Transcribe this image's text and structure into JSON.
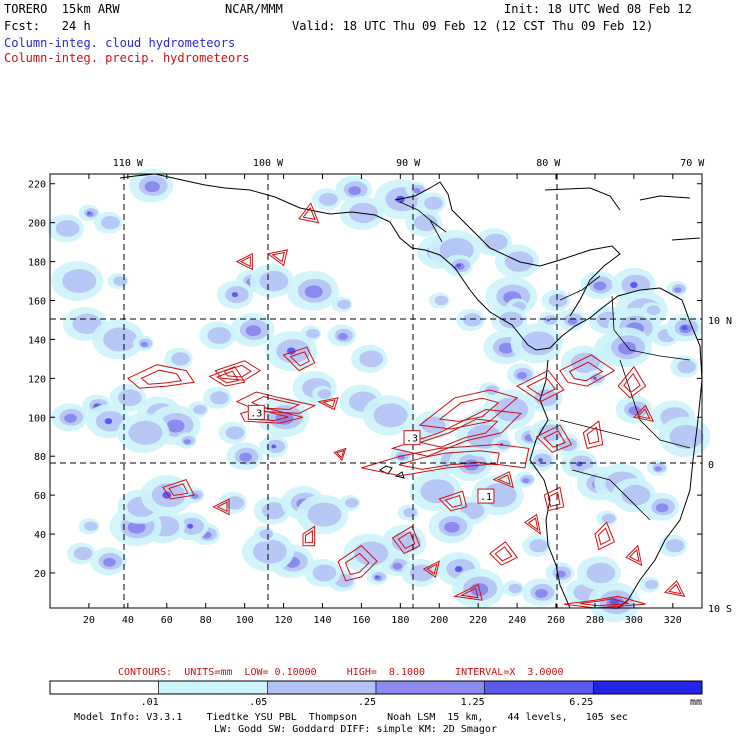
{
  "header": {
    "model": "TORERO  15km ARW",
    "org": "NCAR/MMM",
    "init": "Init: 18 UTC Wed 08 Feb 12",
    "fcst": "Fcst:   24 h",
    "valid": "Valid: 18 UTC Thu 09 Feb 12 (12 CST Thu 09 Feb 12)",
    "legend_cloud": "Column-integ. cloud hydrometeors",
    "legend_precip": "Column-integ. precip. hydrometeors"
  },
  "colors": {
    "cloud": "#2a2ad0",
    "precip": "#d01010",
    "shade": [
      "#ffffff",
      "#ccf4fb",
      "#b4c2f5",
      "#8a8af0",
      "#5a5aec",
      "#2424e6"
    ]
  },
  "chart_data": {
    "type": "heatmap",
    "title": "Column-integ. cloud / precip. hydrometeors",
    "x_ticks": [
      "20",
      "40",
      "60",
      "80",
      "100",
      "120",
      "140",
      "160",
      "180",
      "200",
      "220",
      "240",
      "260",
      "280",
      "300",
      "320"
    ],
    "y_ticks": [
      "20",
      "40",
      "60",
      "80",
      "100",
      "120",
      "140",
      "160",
      "180",
      "200",
      "220"
    ],
    "xlim": [
      0,
      335
    ],
    "ylim": [
      2,
      225
    ],
    "lon_labels": [
      {
        "label": "110 W",
        "x": 40
      },
      {
        "label": "100 W",
        "x": 112
      },
      {
        "label": "90 W",
        "x": 184
      },
      {
        "label": "80 W",
        "x": 256
      },
      {
        "label": "70 W",
        "x": 330
      }
    ],
    "lat_labels": [
      {
        "label": "10 N",
        "y": 150
      },
      {
        "label": "0",
        "y": 76
      },
      {
        "label": "10 S",
        "y": 2
      }
    ],
    "contour_labels": [
      {
        "label": ".3",
        "x": 106,
        "y": 102
      },
      {
        "label": ".3",
        "x": 186,
        "y": 89
      },
      {
        "label": ".1",
        "x": 224,
        "y": 59
      }
    ],
    "cloud_blobs": [
      [
        20,
        205
      ],
      [
        30,
        200
      ],
      [
        8,
        197
      ],
      [
        52,
        219
      ],
      [
        14,
        170
      ],
      [
        35,
        170
      ],
      [
        103,
        170
      ],
      [
        95,
        163
      ],
      [
        114,
        170
      ],
      [
        135,
        165
      ],
      [
        150,
        158
      ],
      [
        142,
        212
      ],
      [
        156,
        217
      ],
      [
        160,
        205
      ],
      [
        180,
        212
      ],
      [
        188,
        217
      ],
      [
        196,
        210
      ],
      [
        192,
        200
      ],
      [
        200,
        185
      ],
      [
        208,
        186
      ],
      [
        200,
        160
      ],
      [
        210,
        178
      ],
      [
        228,
        190
      ],
      [
        240,
        180
      ],
      [
        237,
        162
      ],
      [
        240,
        157
      ],
      [
        260,
        160
      ],
      [
        282,
        168
      ],
      [
        300,
        168
      ],
      [
        304,
        155
      ],
      [
        322,
        166
      ],
      [
        216,
        150
      ],
      [
        236,
        150
      ],
      [
        234,
        136
      ],
      [
        250,
        138
      ],
      [
        256,
        150
      ],
      [
        268,
        150
      ],
      [
        286,
        150
      ],
      [
        291,
        135
      ],
      [
        300,
        146
      ],
      [
        309,
        155
      ],
      [
        316,
        142
      ],
      [
        326,
        146
      ],
      [
        18,
        148
      ],
      [
        35,
        140
      ],
      [
        48,
        138
      ],
      [
        66,
        130
      ],
      [
        86,
        142
      ],
      [
        104,
        145
      ],
      [
        124,
        134
      ],
      [
        134,
        143
      ],
      [
        150,
        142
      ],
      [
        164,
        130
      ],
      [
        136,
        115
      ],
      [
        120,
        100
      ],
      [
        140,
        112
      ],
      [
        115,
        85
      ],
      [
        100,
        80
      ],
      [
        160,
        108
      ],
      [
        174,
        101
      ],
      [
        180,
        80
      ],
      [
        190,
        92
      ],
      [
        196,
        96
      ],
      [
        224,
        96
      ],
      [
        236,
        104
      ],
      [
        226,
        114
      ],
      [
        242,
        122
      ],
      [
        254,
        110
      ],
      [
        274,
        128
      ],
      [
        296,
        136
      ],
      [
        280,
        120
      ],
      [
        326,
        126
      ],
      [
        300,
        104
      ],
      [
        320,
        100
      ],
      [
        326,
        90
      ],
      [
        312,
        74
      ],
      [
        265,
        86
      ],
      [
        272,
        76
      ],
      [
        282,
        66
      ],
      [
        293,
        66
      ],
      [
        286,
        48
      ],
      [
        262,
        20
      ],
      [
        274,
        10
      ],
      [
        282,
        20
      ],
      [
        290,
        5
      ],
      [
        308,
        14
      ],
      [
        320,
        34
      ],
      [
        314,
        54
      ],
      [
        300,
        60
      ],
      [
        230,
        60
      ],
      [
        244,
        68
      ],
      [
        252,
        78
      ],
      [
        216,
        52
      ],
      [
        206,
        44
      ],
      [
        198,
        62
      ],
      [
        184,
        51
      ],
      [
        178,
        24
      ],
      [
        190,
        20
      ],
      [
        210,
        22
      ],
      [
        220,
        12
      ],
      [
        238,
        12
      ],
      [
        250,
        34
      ],
      [
        252,
        10
      ],
      [
        182,
        36
      ],
      [
        164,
        30
      ],
      [
        168,
        18
      ],
      [
        150,
        16
      ],
      [
        140,
        20
      ],
      [
        124,
        26
      ],
      [
        112,
        31
      ],
      [
        110,
        40
      ],
      [
        80,
        40
      ],
      [
        72,
        44
      ],
      [
        58,
        44
      ],
      [
        44,
        44
      ],
      [
        20,
        44
      ],
      [
        16,
        30
      ],
      [
        30,
        26
      ],
      [
        46,
        54
      ],
      [
        60,
        60
      ],
      [
        74,
        60
      ],
      [
        94,
        56
      ],
      [
        114,
        52
      ],
      [
        130,
        56
      ],
      [
        140,
        50
      ],
      [
        154,
        56
      ],
      [
        24,
        106
      ],
      [
        40,
        110
      ],
      [
        56,
        102
      ],
      [
        64,
        96
      ],
      [
        76,
        104
      ],
      [
        86,
        110
      ],
      [
        10,
        100
      ],
      [
        30,
        98
      ],
      [
        48,
        92
      ],
      [
        70,
        88
      ],
      [
        94,
        92
      ],
      [
        206,
        78
      ],
      [
        216,
        76
      ],
      [
        222,
        90
      ],
      [
        232,
        86
      ],
      [
        246,
        90
      ],
      [
        256,
        92
      ]
    ],
    "precip_contours": [
      [
        [
          40,
          120
        ],
        [
          55,
          127
        ],
        [
          70,
          124
        ],
        [
          74,
          118
        ],
        [
          60,
          116
        ],
        [
          46,
          115
        ]
      ],
      [
        [
          85,
          124
        ],
        [
          100,
          129
        ],
        [
          108,
          124
        ],
        [
          100,
          119
        ],
        [
          88,
          120
        ]
      ],
      [
        [
          82,
          121
        ],
        [
          95,
          126
        ],
        [
          100,
          118
        ],
        [
          90,
          116
        ]
      ],
      [
        [
          96,
          108
        ],
        [
          106,
          113
        ],
        [
          118,
          110
        ],
        [
          136,
          106
        ],
        [
          128,
          102
        ],
        [
          108,
          103
        ]
      ],
      [
        [
          98,
          102
        ],
        [
          110,
          105
        ],
        [
          130,
          100
        ],
        [
          118,
          97
        ],
        [
          100,
          98
        ]
      ],
      [
        [
          138,
          108
        ],
        [
          148,
          110
        ],
        [
          146,
          104
        ]
      ],
      [
        [
          146,
          82
        ],
        [
          152,
          84
        ],
        [
          150,
          78
        ]
      ],
      [
        [
          160,
          74
        ],
        [
          180,
          80
        ],
        [
          200,
          84
        ],
        [
          230,
          86
        ],
        [
          246,
          84
        ],
        [
          244,
          74
        ],
        [
          228,
          76
        ],
        [
          204,
          74
        ],
        [
          180,
          70
        ]
      ],
      [
        [
          176,
          84
        ],
        [
          200,
          92
        ],
        [
          224,
          104
        ],
        [
          242,
          102
        ],
        [
          232,
          92
        ],
        [
          214,
          88
        ],
        [
          194,
          80
        ]
      ],
      [
        [
          190,
          96
        ],
        [
          208,
          110
        ],
        [
          226,
          114
        ],
        [
          240,
          110
        ],
        [
          226,
          98
        ],
        [
          206,
          94
        ]
      ],
      [
        [
          240,
          116
        ],
        [
          256,
          124
        ],
        [
          264,
          114
        ],
        [
          252,
          108
        ]
      ],
      [
        [
          262,
          124
        ],
        [
          278,
          132
        ],
        [
          290,
          124
        ],
        [
          276,
          116
        ],
        [
          266,
          118
        ]
      ],
      [
        [
          250,
          90
        ],
        [
          262,
          96
        ],
        [
          268,
          86
        ],
        [
          258,
          82
        ]
      ],
      [
        [
          274,
          92
        ],
        [
          282,
          98
        ],
        [
          284,
          86
        ],
        [
          276,
          84
        ]
      ],
      [
        [
          292,
          116
        ],
        [
          300,
          126
        ],
        [
          306,
          116
        ],
        [
          298,
          110
        ]
      ],
      [
        [
          300,
          100
        ],
        [
          306,
          106
        ],
        [
          310,
          98
        ]
      ],
      [
        [
          120,
          132
        ],
        [
          132,
          136
        ],
        [
          136,
          128
        ],
        [
          128,
          124
        ]
      ],
      [
        [
          112,
          184
        ],
        [
          122,
          186
        ],
        [
          120,
          178
        ]
      ],
      [
        [
          128,
          202
        ],
        [
          134,
          210
        ],
        [
          138,
          200
        ]
      ],
      [
        [
          96,
          180
        ],
        [
          104,
          184
        ],
        [
          104,
          176
        ]
      ],
      [
        [
          130,
          40
        ],
        [
          136,
          44
        ],
        [
          136,
          34
        ],
        [
          130,
          34
        ]
      ],
      [
        [
          148,
          26
        ],
        [
          160,
          34
        ],
        [
          168,
          26
        ],
        [
          160,
          18
        ],
        [
          152,
          16
        ]
      ],
      [
        [
          176,
          38
        ],
        [
          186,
          44
        ],
        [
          190,
          34
        ],
        [
          182,
          30
        ]
      ],
      [
        [
          192,
          22
        ],
        [
          200,
          26
        ],
        [
          198,
          18
        ]
      ],
      [
        [
          208,
          8
        ],
        [
          220,
          14
        ],
        [
          222,
          6
        ]
      ],
      [
        [
          226,
          30
        ],
        [
          234,
          36
        ],
        [
          240,
          28
        ],
        [
          232,
          24
        ]
      ],
      [
        [
          244,
          46
        ],
        [
          250,
          50
        ],
        [
          252,
          40
        ]
      ],
      [
        [
          280,
          40
        ],
        [
          286,
          46
        ],
        [
          290,
          36
        ],
        [
          282,
          32
        ]
      ],
      [
        [
          296,
          28
        ],
        [
          302,
          34
        ],
        [
          304,
          24
        ]
      ],
      [
        [
          264,
          4
        ],
        [
          280,
          6
        ],
        [
          292,
          8
        ],
        [
          306,
          4
        ],
        [
          280,
          2
        ]
      ],
      [
        [
          316,
          10
        ],
        [
          322,
          16
        ],
        [
          326,
          8
        ]
      ],
      [
        [
          58,
          64
        ],
        [
          70,
          68
        ],
        [
          74,
          60
        ],
        [
          62,
          58
        ]
      ],
      [
        [
          84,
          54
        ],
        [
          92,
          58
        ],
        [
          92,
          50
        ]
      ],
      [
        [
          200,
          58
        ],
        [
          212,
          62
        ],
        [
          214,
          54
        ],
        [
          206,
          52
        ]
      ],
      [
        [
          228,
          68
        ],
        [
          236,
          72
        ],
        [
          238,
          64
        ]
      ],
      [
        [
          254,
          60
        ],
        [
          262,
          64
        ],
        [
          264,
          54
        ],
        [
          256,
          52
        ]
      ]
    ],
    "contour_note": "CONTOURS:  UNITS=mm  LOW= 0.10000     HIGH=  8.1000     INTERVAL=X  3.0000",
    "colorbar": {
      "labels": [
        ".01",
        ".05",
        ".25",
        "1.25",
        "6.25"
      ],
      "unit": "mm"
    }
  },
  "footer": {
    "line1": "Model Info: V3.3.1    Tiedtke YSU PBL  Thompson     Noah LSM  15 km,    44 levels,   105 sec",
    "line2": "LW: Godd SW: Goddard DIFF: simple KM: 2D Smagor"
  }
}
